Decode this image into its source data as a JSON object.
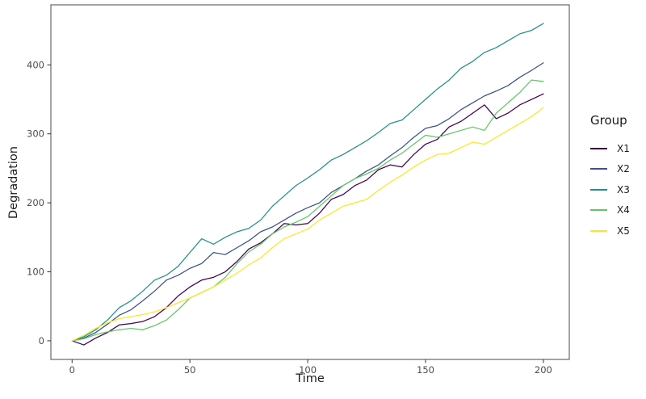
{
  "chart_data": {
    "type": "line",
    "title": "",
    "xlabel": "Time",
    "ylabel": "Degradation",
    "legend_title": "Group",
    "legend_position": "right",
    "grid": false,
    "background": "#ffffff",
    "panel_border_color": "#595959",
    "tick_color": "#333333",
    "axis_text_color": "#4d4d4d",
    "xlim": [
      -9,
      211
    ],
    "ylim": [
      -27,
      487
    ],
    "x_ticks": [
      0,
      50,
      100,
      150,
      200
    ],
    "y_ticks": [
      0,
      100,
      200,
      300,
      400
    ],
    "x": [
      0,
      5,
      10,
      15,
      20,
      25,
      30,
      35,
      40,
      45,
      50,
      55,
      60,
      65,
      70,
      75,
      80,
      85,
      90,
      95,
      100,
      105,
      110,
      115,
      120,
      125,
      130,
      135,
      140,
      145,
      150,
      155,
      160,
      165,
      170,
      175,
      180,
      185,
      190,
      195,
      200
    ],
    "series": [
      {
        "name": "X1",
        "color": "#440154",
        "values": [
          0,
          -6,
          4,
          12,
          23,
          25,
          28,
          35,
          48,
          65,
          78,
          88,
          92,
          100,
          115,
          133,
          142,
          155,
          170,
          168,
          170,
          185,
          205,
          212,
          225,
          233,
          248,
          255,
          252,
          270,
          285,
          292,
          310,
          318,
          330,
          342,
          322,
          330,
          342,
          350,
          358
        ]
      },
      {
        "name": "X2",
        "color": "#3b528b",
        "values": [
          0,
          4,
          12,
          24,
          37,
          45,
          58,
          72,
          88,
          95,
          105,
          112,
          128,
          125,
          135,
          145,
          158,
          165,
          175,
          185,
          193,
          200,
          215,
          225,
          235,
          246,
          255,
          268,
          280,
          295,
          308,
          312,
          322,
          335,
          345,
          355,
          362,
          370,
          382,
          392,
          403
        ]
      },
      {
        "name": "X3",
        "color": "#21918c",
        "values": [
          0,
          6,
          16,
          30,
          48,
          58,
          72,
          88,
          95,
          108,
          128,
          148,
          140,
          150,
          158,
          163,
          175,
          195,
          210,
          225,
          236,
          248,
          262,
          270,
          280,
          290,
          302,
          315,
          320,
          335,
          350,
          365,
          378,
          395,
          405,
          418,
          425,
          435,
          445,
          450,
          460
        ]
      },
      {
        "name": "X4",
        "color": "#5ec962",
        "values": [
          0,
          3,
          9,
          13,
          16,
          18,
          16,
          22,
          30,
          45,
          62,
          70,
          78,
          92,
          112,
          129,
          140,
          155,
          165,
          172,
          180,
          195,
          210,
          225,
          235,
          242,
          250,
          262,
          272,
          285,
          298,
          295,
          300,
          305,
          310,
          305,
          330,
          345,
          360,
          378,
          376
        ]
      },
      {
        "name": "X5",
        "color": "#fde725",
        "values": [
          0,
          8,
          18,
          26,
          32,
          35,
          38,
          42,
          48,
          55,
          62,
          70,
          78,
          88,
          98,
          110,
          120,
          135,
          148,
          155,
          162,
          175,
          185,
          195,
          200,
          205,
          218,
          230,
          240,
          252,
          262,
          270,
          272,
          280,
          288,
          285,
          295,
          305,
          315,
          325,
          338
        ]
      }
    ]
  }
}
